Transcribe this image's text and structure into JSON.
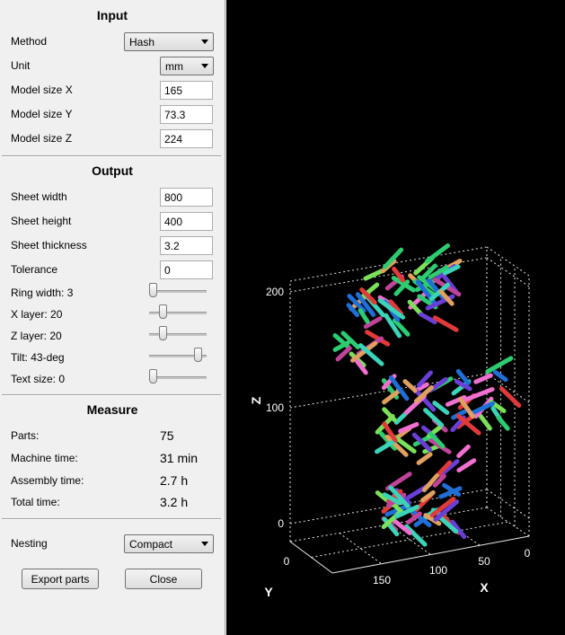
{
  "input": {
    "title": "Input",
    "method_label": "Method",
    "method_value": "Hash",
    "unit_label": "Unit",
    "unit_value": "mm",
    "size_x_label": "Model size X",
    "size_x_value": "165",
    "size_y_label": "Model size Y",
    "size_y_value": "73.3",
    "size_z_label": "Model size Z",
    "size_z_value": "224"
  },
  "output": {
    "title": "Output",
    "sheet_width_label": "Sheet width",
    "sheet_width_value": "800",
    "sheet_height_label": "Sheet height",
    "sheet_height_value": "400",
    "sheet_thickness_label": "Sheet thickness",
    "sheet_thickness_value": "3.2",
    "tolerance_label": "Tolerance",
    "tolerance_value": "0",
    "ring_width_label": "Ring width: 3",
    "ring_width_level": 0.0,
    "x_layer_label": "X layer: 20",
    "x_layer_level": 0.2,
    "z_layer_label": "Z layer: 20",
    "z_layer_level": 0.2,
    "tilt_label": "Tilt: 43-deg",
    "tilt_level": 0.9,
    "text_size_label": "Text size: 0",
    "text_size_level": 0.0
  },
  "measure": {
    "title": "Measure",
    "parts_label": "Parts:",
    "parts_value": "75",
    "machine_time_label": "Machine time:",
    "machine_time_value": "31 min",
    "assembly_time_label": "Assembly time:",
    "assembly_time_value": "2.7 h",
    "total_time_label": "Total time:",
    "total_time_value": "3.2 h"
  },
  "nesting": {
    "label": "Nesting",
    "value": "Compact"
  },
  "buttons": {
    "export": "Export parts",
    "close": "Close"
  },
  "plot": {
    "z_label": "Z",
    "x_label": "X",
    "y_label": "Y",
    "z_ticks": [
      "200",
      "100",
      "0"
    ],
    "x_ticks": [
      "150",
      "100",
      "50",
      "0"
    ],
    "y_ticks": [
      "0"
    ],
    "colors": [
      "#3bd4b8",
      "#2ecc71",
      "#c0439a",
      "#6a3fd6",
      "#e0a060",
      "#f06fd0",
      "#1f6fd6",
      "#e03a3a",
      "#7be05a"
    ]
  }
}
